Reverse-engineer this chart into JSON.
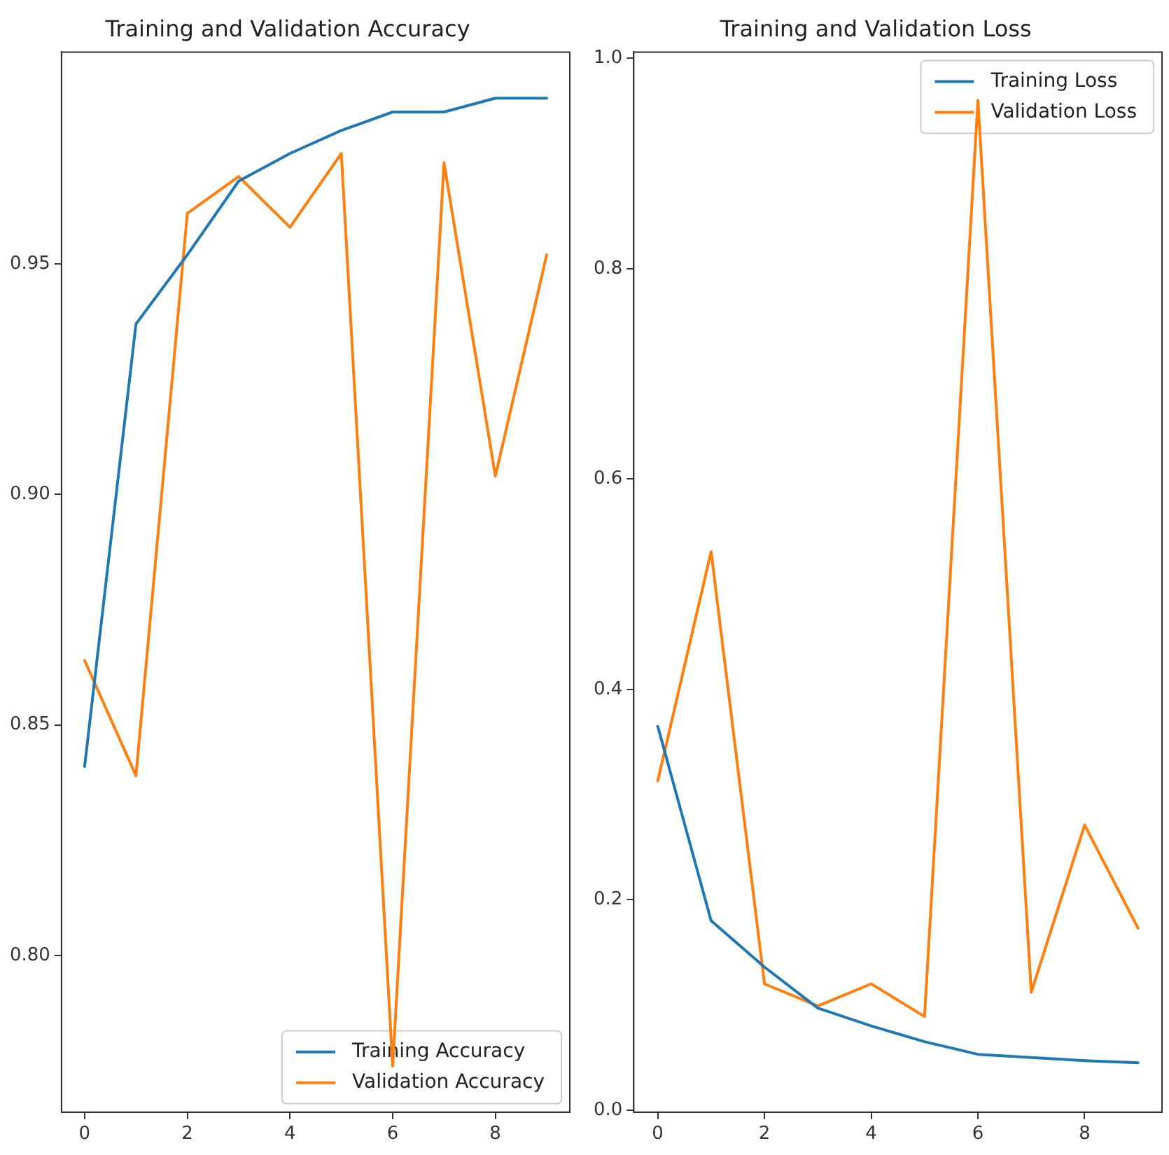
{
  "chart_data": [
    {
      "type": "line",
      "title": "Training and Validation Accuracy",
      "x": [
        0,
        1,
        2,
        3,
        4,
        5,
        6,
        7,
        8,
        9
      ],
      "series": [
        {
          "name": "Training Accuracy",
          "color": "#1f77b4",
          "values": [
            0.841,
            0.937,
            0.952,
            0.968,
            0.974,
            0.979,
            0.983,
            0.983,
            0.986,
            0.986
          ]
        },
        {
          "name": "Validation Accuracy",
          "color": "#ff7f0e",
          "values": [
            0.864,
            0.839,
            0.961,
            0.969,
            0.958,
            0.974,
            0.776,
            0.972,
            0.904,
            0.952
          ]
        }
      ],
      "xlim": [
        -0.45,
        9.45
      ],
      "xticks": [
        0,
        2,
        4,
        6,
        8
      ],
      "ylim": [
        0.766,
        0.996
      ],
      "yticks": [
        {
          "value": 0.8,
          "label": "0.80"
        },
        {
          "value": 0.85,
          "label": "0.85"
        },
        {
          "value": 0.9,
          "label": "0.90"
        },
        {
          "value": 0.95,
          "label": "0.95"
        }
      ],
      "legend": "bottom right",
      "marker": "none",
      "line_style": "solid"
    },
    {
      "type": "line",
      "title": "Training and Validation Loss",
      "x": [
        0,
        1,
        2,
        3,
        4,
        5,
        6,
        7,
        8,
        9
      ],
      "series": [
        {
          "name": "Training Loss",
          "color": "#1f77b4",
          "values": [
            0.365,
            0.18,
            0.136,
            0.097,
            0.08,
            0.065,
            0.053,
            0.05,
            0.047,
            0.045
          ]
        },
        {
          "name": "Validation Loss",
          "color": "#ff7f0e",
          "values": [
            0.313,
            0.531,
            0.12,
            0.099,
            0.12,
            0.089,
            0.96,
            0.112,
            0.271,
            0.173
          ]
        }
      ],
      "xlim": [
        -0.45,
        9.45
      ],
      "xticks": [
        0,
        2,
        4,
        6,
        8
      ],
      "ylim": [
        -0.002,
        1.006
      ],
      "yticks": [
        {
          "value": 0,
          "label": "0.0"
        },
        {
          "value": 0.2,
          "label": "0.2"
        },
        {
          "value": 0.4,
          "label": "0.4"
        },
        {
          "value": 0.6,
          "label": "0.6"
        },
        {
          "value": 0.8,
          "label": "0.8"
        },
        {
          "value": 1,
          "label": "1.0"
        }
      ],
      "legend": "top right",
      "marker": "none",
      "line_style": "solid"
    }
  ]
}
